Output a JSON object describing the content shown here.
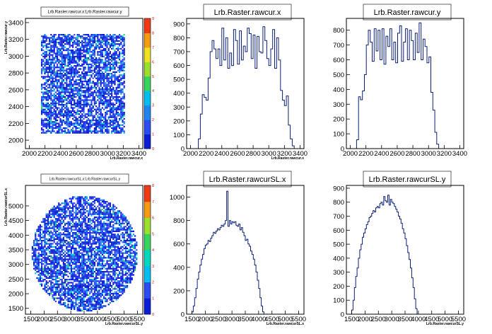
{
  "chart_data": [
    {
      "type": "heatmap",
      "title": "Lrb.Raster.rawcur.x:Lrb.Raster.rawcur.y",
      "xlabel": "Lrb.Raster.rawcur.x",
      "ylabel": "Lrb.Raster.rawcur.y",
      "xlim": [
        1950,
        3450
      ],
      "ylim": [
        1900,
        3450
      ],
      "x_ticks": [
        "2000",
        "2200",
        "2400",
        "2600",
        "2800",
        "3000",
        "3200",
        "3400"
      ],
      "y_ticks": [
        "2000",
        "2200",
        "2400",
        "2600",
        "2800",
        "3000",
        "3200",
        "3400"
      ],
      "y_tick_values": [
        2000,
        2200,
        2400,
        2600,
        2800,
        3000,
        3200,
        3400
      ],
      "shape": "rectangle",
      "region": {
        "x": [
          2130,
          3220
        ],
        "y": [
          2080,
          3270
        ]
      },
      "colorbar": {
        "min": 0,
        "max": 9,
        "ticks": [
          "0",
          "1",
          "2",
          "3",
          "4",
          "5",
          "6",
          "7",
          "8",
          "9"
        ]
      }
    },
    {
      "type": "histogram",
      "title": "Lrb.Raster.rawcur.x",
      "xlabel": "Lrb.Raster.rawcur.x",
      "xlim": [
        1950,
        3450
      ],
      "ylim": [
        0,
        940
      ],
      "x_ticks": [
        "2000",
        "2200",
        "2400",
        "2600",
        "2800",
        "3000",
        "3200",
        "3400"
      ],
      "y_ticks": [
        "0",
        "100",
        "200",
        "300",
        "400",
        "500",
        "600",
        "700",
        "800",
        "900"
      ],
      "bin_start": 2100,
      "bin_width": 25,
      "values": [
        70,
        250,
        390,
        370,
        350,
        510,
        700,
        780,
        720,
        650,
        720,
        600,
        870,
        640,
        800,
        580,
        690,
        600,
        860,
        780,
        610,
        850,
        640,
        740,
        700,
        870,
        830,
        650,
        820,
        580,
        810,
        700,
        690,
        880,
        780,
        650,
        600,
        720,
        860,
        580,
        800,
        640,
        420,
        350,
        310,
        380,
        170,
        70,
        20
      ]
    },
    {
      "type": "histogram",
      "title": "Lrb.Raster.rawcur.y",
      "xlabel": "",
      "xlim": [
        1950,
        3450
      ],
      "ylim": [
        0,
        880
      ],
      "x_ticks": [
        "2000",
        "2200",
        "2400",
        "2600",
        "2800",
        "3000",
        "3200",
        "3400"
      ],
      "y_ticks": [
        "0",
        "100",
        "200",
        "300",
        "400",
        "500",
        "600",
        "700",
        "800"
      ],
      "bin_start": 2080,
      "bin_width": 25,
      "values": [
        60,
        350,
        330,
        390,
        500,
        700,
        800,
        720,
        590,
        810,
        660,
        800,
        600,
        810,
        570,
        760,
        690,
        810,
        600,
        720,
        580,
        780,
        830,
        590,
        720,
        810,
        600,
        800,
        730,
        600,
        780,
        650,
        850,
        600,
        740,
        690,
        580,
        620,
        380,
        260,
        110,
        30
      ]
    },
    {
      "type": "heatmap",
      "title": "Lrb.Raster.rawcurSL.x:Lrb.Raster.rawcurSL.y",
      "xlabel": "Lrb.Raster.rawcurSL.y",
      "ylabel": "Lrb.Raster.rawcurSL.x",
      "xlim": [
        1300,
        5700
      ],
      "ylim": [
        1300,
        5700
      ],
      "x_ticks": [
        "1500",
        "2000",
        "2500",
        "3000",
        "3500",
        "4000",
        "4500",
        "5000",
        "5500"
      ],
      "y_ticks": [
        "1500",
        "2000",
        "2500",
        "3000",
        "3500",
        "4000",
        "4500",
        "5000"
      ],
      "y_tick_values": [
        1500,
        2000,
        2500,
        3000,
        3500,
        4000,
        4500,
        5000
      ],
      "shape": "circle",
      "center": [
        3500,
        3400
      ],
      "radius": 1980,
      "colorbar": {
        "min": 0,
        "max": 8,
        "ticks": [
          "0",
          "1",
          "2",
          "3",
          "4",
          "5",
          "6",
          "7",
          "8"
        ]
      }
    },
    {
      "type": "histogram",
      "title": "Lrb.Raster.rawcurSL.x",
      "xlabel": "Lrb.Raster.rawcurSL.x",
      "xlim": [
        1300,
        5700
      ],
      "ylim": [
        0,
        1100
      ],
      "x_ticks": [
        "1500",
        "2000",
        "2500",
        "3000",
        "3500",
        "4000",
        "4500",
        "5000",
        "5500"
      ],
      "y_ticks": [
        "0",
        "200",
        "400",
        "600",
        "800",
        "1000"
      ],
      "bin_start": 1500,
      "bin_width": 50,
      "values": [
        20,
        70,
        140,
        220,
        300,
        360,
        420,
        470,
        510,
        560,
        590,
        600,
        630,
        620,
        650,
        670,
        700,
        690,
        710,
        730,
        720,
        740,
        760,
        750,
        770,
        800,
        1050,
        750,
        800,
        770,
        790,
        780,
        790,
        760,
        750,
        770,
        720,
        740,
        700,
        670,
        630,
        640,
        600,
        580,
        540,
        510,
        470,
        420,
        360,
        290,
        220,
        140,
        70,
        20
      ]
    },
    {
      "type": "histogram",
      "title": "Lrb.Raster.rawcurSL.y",
      "xlabel": "Lrb.Raster.rawcurSL.y",
      "xlim": [
        1300,
        5700
      ],
      "ylim": [
        0,
        920
      ],
      "x_ticks": [
        "1500",
        "2000",
        "2500",
        "3000",
        "3500",
        "4000",
        "4500",
        "5000",
        "5500"
      ],
      "y_ticks": [
        "0",
        "100",
        "200",
        "300",
        "400",
        "500",
        "600",
        "700",
        "800",
        "900"
      ],
      "bin_start": 1500,
      "bin_width": 50,
      "values": [
        30,
        100,
        190,
        270,
        330,
        400,
        460,
        500,
        550,
        580,
        610,
        640,
        660,
        690,
        700,
        720,
        740,
        730,
        760,
        770,
        760,
        790,
        800,
        780,
        840,
        810,
        800,
        850,
        780,
        820,
        800,
        790,
        770,
        750,
        730,
        700,
        680,
        650,
        610,
        580,
        540,
        490,
        440,
        390,
        330,
        260,
        190,
        110,
        40
      ]
    }
  ]
}
